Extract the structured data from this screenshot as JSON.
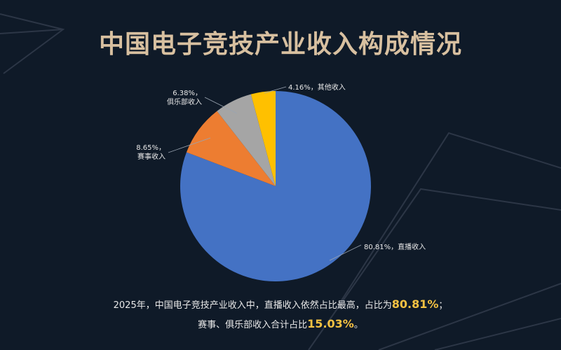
{
  "title": "中国电子竞技产业收入构成情况",
  "chart_data": {
    "type": "pie",
    "title": "中国电子竞技产业收入构成情况",
    "slices": [
      {
        "name": "直播收入",
        "value": 80.81,
        "label": "80.81%，直播收入",
        "color": "#4472c4"
      },
      {
        "name": "赛事收入",
        "value": 8.65,
        "label_lines": [
          "8.65%，",
          "赛事收入"
        ],
        "color": "#ed7d31"
      },
      {
        "name": "俱乐部收入",
        "value": 6.38,
        "label_lines": [
          "6.38%，",
          "俱乐部收入"
        ],
        "color": "#a5a5a5"
      },
      {
        "name": "其他收入",
        "value": 4.16,
        "label": "4.16%，其他收入",
        "color": "#ffc000"
      }
    ]
  },
  "summary": {
    "line1_prefix": "2025年，中国电子竞技产业收入中，直播收入依然占比最高，占比为",
    "line1_value": "80.81%",
    "line1_suffix": "；",
    "line2_prefix": "赛事、俱乐部收入合计占比",
    "line2_value": "15.03%",
    "line2_suffix": "。"
  }
}
